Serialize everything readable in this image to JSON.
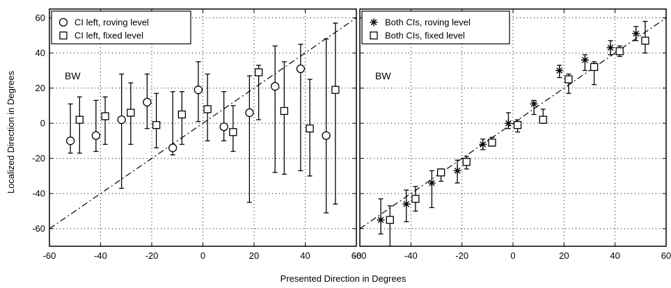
{
  "figure": {
    "xlabel": "Presented Direction in Degrees",
    "ylabel": "Localized Direction in Degrees"
  },
  "chart_data": [
    {
      "type": "scatter",
      "panel_label": "BW",
      "xlim": [
        -60,
        60
      ],
      "ylim": [
        -70,
        65
      ],
      "x_ticks": [
        -60,
        -40,
        -20,
        0,
        20,
        40,
        60
      ],
      "y_ticks": [
        -60,
        -40,
        -20,
        0,
        20,
        40,
        60
      ],
      "grid": "dotted",
      "legend_position": "top-left",
      "reference_line": {
        "style": "dash-dot",
        "from": [
          -60,
          -60
        ],
        "to": [
          60,
          60
        ]
      },
      "series": [
        {
          "name": "CI left, roving level",
          "marker": "circle",
          "points": [
            {
              "x": -50,
              "y": -10,
              "lo": -17,
              "hi": 11
            },
            {
              "x": -40,
              "y": -7,
              "lo": -16,
              "hi": 13
            },
            {
              "x": -30,
              "y": 2,
              "lo": -37,
              "hi": 28
            },
            {
              "x": -20,
              "y": 12,
              "lo": -3,
              "hi": 28
            },
            {
              "x": -10,
              "y": -14,
              "lo": -18,
              "hi": 18
            },
            {
              "x": 0,
              "y": 19,
              "lo": 1,
              "hi": 35
            },
            {
              "x": 10,
              "y": -2,
              "lo": -10,
              "hi": 18
            },
            {
              "x": 20,
              "y": 6,
              "lo": -45,
              "hi": 27
            },
            {
              "x": 30,
              "y": 21,
              "lo": -28,
              "hi": 44
            },
            {
              "x": 40,
              "y": 31,
              "lo": -27,
              "hi": 45
            },
            {
              "x": 50,
              "y": -7,
              "lo": -51,
              "hi": 48
            }
          ]
        },
        {
          "name": "CI left, fixed level",
          "marker": "square",
          "points": [
            {
              "x": -50,
              "y": 2,
              "lo": -17,
              "hi": 15
            },
            {
              "x": -40,
              "y": 4,
              "lo": -12,
              "hi": 15
            },
            {
              "x": -30,
              "y": 6,
              "lo": -12,
              "hi": 23
            },
            {
              "x": -20,
              "y": -1,
              "lo": -14,
              "hi": 17
            },
            {
              "x": -10,
              "y": 5,
              "lo": -12,
              "hi": 18
            },
            {
              "x": 0,
              "y": 8,
              "lo": -10,
              "hi": 28
            },
            {
              "x": 10,
              "y": -5,
              "lo": -16,
              "hi": 10
            },
            {
              "x": 20,
              "y": 29,
              "lo": 2,
              "hi": 33
            },
            {
              "x": 30,
              "y": 7,
              "lo": -29,
              "hi": 35
            },
            {
              "x": 40,
              "y": -3,
              "lo": -30,
              "hi": 25
            },
            {
              "x": 50,
              "y": 19,
              "lo": -46,
              "hi": 57
            }
          ]
        }
      ]
    },
    {
      "type": "scatter",
      "panel_label": "BW",
      "xlim": [
        -60,
        60
      ],
      "ylim": [
        -70,
        65
      ],
      "x_ticks": [
        -60,
        -40,
        -20,
        0,
        20,
        40,
        60
      ],
      "y_ticks": [
        -60,
        -40,
        -20,
        0,
        20,
        40,
        60
      ],
      "grid": "dotted",
      "legend_position": "top-left",
      "reference_line": {
        "style": "dash-dot",
        "from": [
          -60,
          -60
        ],
        "to": [
          60,
          60
        ]
      },
      "series": [
        {
          "name": "Both CIs, roving level",
          "marker": "asterisk",
          "points": [
            {
              "x": -50,
              "y": -55,
              "lo": -63,
              "hi": -43
            },
            {
              "x": -40,
              "y": -46,
              "lo": -56,
              "hi": -38
            },
            {
              "x": -30,
              "y": -34,
              "lo": -48,
              "hi": -27
            },
            {
              "x": -20,
              "y": -27,
              "lo": -34,
              "hi": -21
            },
            {
              "x": -10,
              "y": -12,
              "lo": -15,
              "hi": -9
            },
            {
              "x": 0,
              "y": 0,
              "lo": -3,
              "hi": 6
            },
            {
              "x": 10,
              "y": 11,
              "lo": 5,
              "hi": 13
            },
            {
              "x": 20,
              "y": 30,
              "lo": 26,
              "hi": 33
            },
            {
              "x": 30,
              "y": 36,
              "lo": 30,
              "hi": 39
            },
            {
              "x": 40,
              "y": 43,
              "lo": 39,
              "hi": 47
            },
            {
              "x": 50,
              "y": 51,
              "lo": 47,
              "hi": 55
            }
          ]
        },
        {
          "name": "Both CIs, fixed level",
          "marker": "square",
          "points": [
            {
              "x": -50,
              "y": -55,
              "lo": -70,
              "hi": -47
            },
            {
              "x": -40,
              "y": -43,
              "lo": -50,
              "hi": -36
            },
            {
              "x": -30,
              "y": -28,
              "lo": -33,
              "hi": -26
            },
            {
              "x": -20,
              "y": -22,
              "lo": -26,
              "hi": -19
            },
            {
              "x": -10,
              "y": -11,
              "lo": -13,
              "hi": -8
            },
            {
              "x": 0,
              "y": -1,
              "lo": -5,
              "hi": 2
            },
            {
              "x": 10,
              "y": 2,
              "lo": 0,
              "hi": 8
            },
            {
              "x": 20,
              "y": 25,
              "lo": 17,
              "hi": 28
            },
            {
              "x": 30,
              "y": 32,
              "lo": 22,
              "hi": 35
            },
            {
              "x": 40,
              "y": 41,
              "lo": 38,
              "hi": 44
            },
            {
              "x": 50,
              "y": 47,
              "lo": 40,
              "hi": 58
            }
          ]
        }
      ]
    }
  ]
}
